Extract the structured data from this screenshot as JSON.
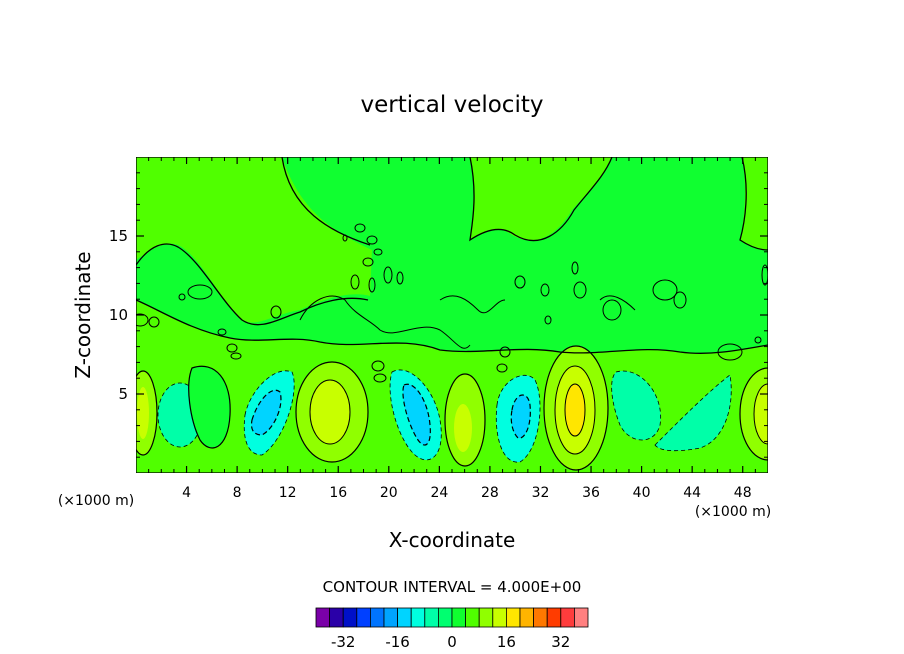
{
  "chart_data": {
    "type": "heatmap",
    "title": "vertical velocity",
    "xlabel": "X-coordinate",
    "ylabel": "Z-coordinate",
    "x_unit_left": "(×1000 m)",
    "x_unit_right": "(×1000 m)",
    "xlim": [
      0,
      50
    ],
    "ylim": [
      0,
      20
    ],
    "x_ticks": [
      4,
      8,
      12,
      16,
      20,
      24,
      28,
      32,
      36,
      40,
      44,
      48
    ],
    "x_tick_labels": [
      "4",
      "8",
      "12",
      "16",
      "20",
      "24",
      "28",
      "32",
      "36",
      "40",
      "44",
      "48"
    ],
    "y_ticks": [
      5,
      10,
      15
    ],
    "y_tick_labels": [
      "5",
      "10",
      "15"
    ],
    "contour_interval_label": "CONTOUR INTERVAL = 4.000E+00",
    "contour_interval": 4,
    "colorbar": {
      "levels": [
        -40,
        -36,
        -32,
        -28,
        -24,
        -20,
        -16,
        -12,
        -8,
        -4,
        0,
        4,
        8,
        12,
        16,
        20,
        24,
        28,
        32,
        36,
        40
      ],
      "colors": [
        "#7a00a8",
        "#2a00a8",
        "#0010c8",
        "#0040ff",
        "#0074ff",
        "#00a4ff",
        "#00d4ff",
        "#00ffe0",
        "#00ffa8",
        "#00ff70",
        "#10ff30",
        "#50ff00",
        "#90ff00",
        "#c8ff00",
        "#ffe600",
        "#ffb400",
        "#ff7800",
        "#ff3c00",
        "#ff3c3c",
        "#ff8080"
      ],
      "tick_values": [
        -32,
        -16,
        0,
        16,
        32
      ],
      "tick_labels": [
        "-32",
        "-16",
        "0",
        "16",
        "32"
      ]
    },
    "cells": [
      {
        "x": 1.0,
        "z": 3.5,
        "value": 6
      },
      {
        "x": 3.0,
        "z": 3.5,
        "value": -4
      },
      {
        "x": 10.0,
        "z": 3.5,
        "value": -8
      },
      {
        "x": 15.5,
        "z": 3.5,
        "value": 10
      },
      {
        "x": 22.0,
        "z": 3.0,
        "value": -8
      },
      {
        "x": 26.0,
        "z": 3.0,
        "value": 6
      },
      {
        "x": 30.0,
        "z": 3.0,
        "value": -8
      },
      {
        "x": 34.5,
        "z": 3.5,
        "value": 14
      },
      {
        "x": 40.0,
        "z": 4.0,
        "value": -4
      },
      {
        "x": 45.0,
        "z": 3.0,
        "value": -4
      },
      {
        "x": 49.5,
        "z": 3.5,
        "value": 6
      },
      {
        "x": 25.0,
        "z": 17.0,
        "value": 0
      },
      {
        "x": 9.0,
        "z": 12.0,
        "value": 1
      }
    ]
  }
}
